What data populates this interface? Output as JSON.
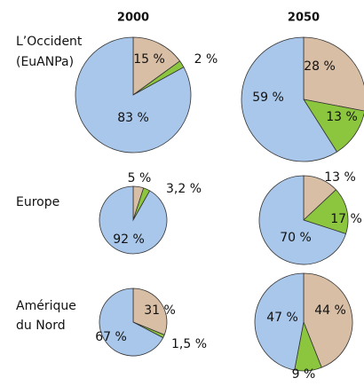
{
  "column_titles": [
    "2000",
    "2050"
  ],
  "row_labels": [
    [
      "L’Occident",
      "(EuANPa)"
    ],
    [
      "Europe"
    ],
    [
      "Amérique",
      "du Nord"
    ]
  ],
  "chart_data": [
    {
      "type": "pie",
      "values": [
        15,
        2,
        83
      ],
      "value_labels": [
        "15 %",
        "2 %",
        "83 %"
      ],
      "colors": [
        "#d9bea6",
        "#8cc63e",
        "#a9c7ea"
      ]
    },
    {
      "type": "pie",
      "values": [
        28,
        13,
        59
      ],
      "value_labels": [
        "28 %",
        "13 %",
        "59 %"
      ],
      "colors": [
        "#d9bea6",
        "#8cc63e",
        "#a9c7ea"
      ]
    },
    {
      "type": "pie",
      "values": [
        5,
        3.2,
        92
      ],
      "value_labels": [
        "5 %",
        "3,2 %",
        "92 %"
      ],
      "colors": [
        "#d9bea6",
        "#8cc63e",
        "#a9c7ea"
      ]
    },
    {
      "type": "pie",
      "values": [
        13,
        17,
        70
      ],
      "value_labels": [
        "13 %",
        "17 %",
        "70 %"
      ],
      "colors": [
        "#d9bea6",
        "#8cc63e",
        "#a9c7ea"
      ]
    },
    {
      "type": "pie",
      "values": [
        31,
        1.5,
        67
      ],
      "value_labels": [
        "31 %",
        "1,5 %",
        "67 %"
      ],
      "colors": [
        "#d9bea6",
        "#8cc63e",
        "#a9c7ea"
      ]
    },
    {
      "type": "pie",
      "values": [
        44,
        9,
        47
      ],
      "value_labels": [
        "44 %",
        "9 %",
        "47 %"
      ],
      "colors": [
        "#d9bea6",
        "#8cc63e",
        "#a9c7ea"
      ]
    }
  ]
}
